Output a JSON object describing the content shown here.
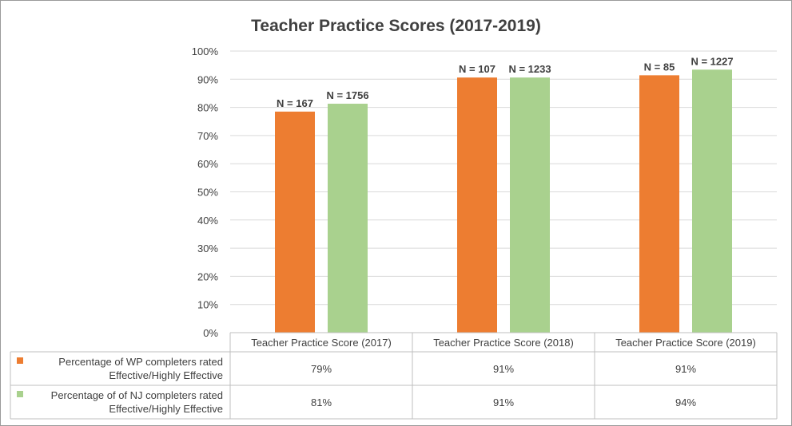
{
  "chart_data": {
    "type": "bar",
    "title": "Teacher Practice Scores (2017-2019)",
    "categories": [
      "Teacher Practice Score (2017)",
      "Teacher Practice Score (2018)",
      "Teacher Practice Score (2019)"
    ],
    "ylim": [
      0,
      100
    ],
    "yticks": [
      "0%",
      "10%",
      "20%",
      "30%",
      "40%",
      "50%",
      "60%",
      "70%",
      "80%",
      "90%",
      "100%"
    ],
    "grid": true,
    "series": [
      {
        "name": "Percentage of WP completers rated Effective/Highly Effective",
        "legend_lines": [
          "Percentage of WP completers rated",
          "Effective/Highly Effective"
        ],
        "color": "#ED7D31",
        "values": [
          79,
          91,
          91
        ],
        "plot_values": [
          78.5,
          90.6,
          91.4
        ],
        "table_labels": [
          "79%",
          "91%",
          "91%"
        ],
        "n_labels": [
          "N = 167",
          "N = 107",
          "N = 85"
        ]
      },
      {
        "name": "Percentage of of NJ  completers rated Effective/Highly Effective",
        "legend_lines": [
          "Percentage of of NJ  completers rated",
          "Effective/Highly Effective"
        ],
        "color": "#A9D18E",
        "values": [
          81,
          91,
          94
        ],
        "plot_values": [
          81.3,
          90.6,
          93.4
        ],
        "table_labels": [
          "81%",
          "91%",
          "94%"
        ],
        "n_labels": [
          "N = 1756",
          "N = 1233",
          "N = 1227"
        ]
      }
    ]
  }
}
